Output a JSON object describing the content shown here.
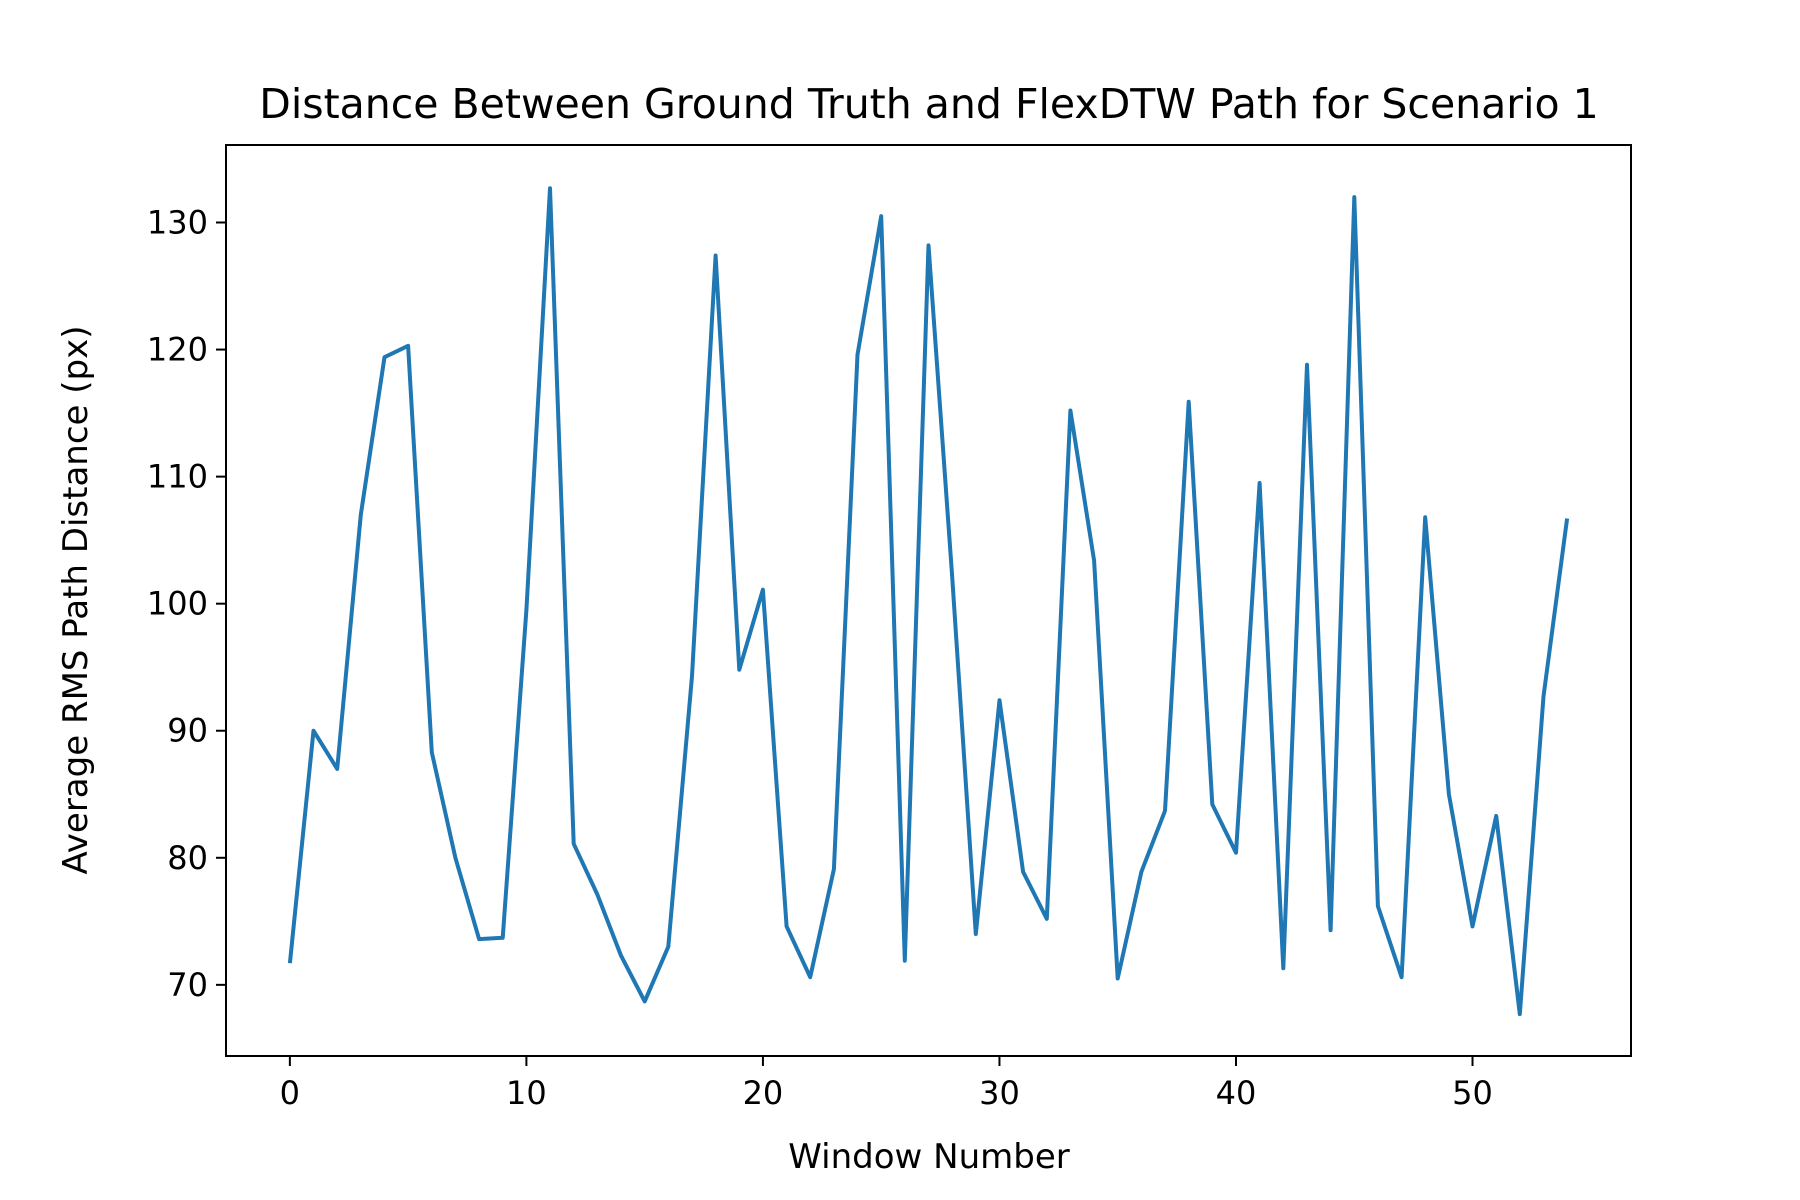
{
  "chart_data": {
    "type": "line",
    "title": "Distance Between Ground Truth and FlexDTW Path for Scenario 1",
    "xlabel": "Window Number",
    "ylabel": "Average RMS Path Distance (px)",
    "xlim": [
      -2.7,
      56.7
    ],
    "ylim": [
      64.4,
      136.1
    ],
    "xticks": [
      0,
      10,
      20,
      30,
      40,
      50
    ],
    "yticks": [
      70,
      80,
      90,
      100,
      110,
      120,
      130
    ],
    "grid": false,
    "legend": "none",
    "line_color": "#1f77b4",
    "series": [
      {
        "x": [
          0,
          1,
          2,
          3,
          4,
          5,
          6,
          7,
          8,
          9,
          10,
          11,
          12,
          13,
          14,
          15,
          16,
          17,
          18,
          19,
          20,
          21,
          22,
          23,
          24,
          25,
          26,
          27,
          28,
          29,
          30,
          31,
          32,
          33,
          34,
          35,
          36,
          37,
          38,
          39,
          40,
          41,
          42,
          43,
          44,
          45,
          46,
          47,
          48,
          49,
          50,
          51,
          52,
          53,
          54
        ],
        "values": [
          71.7,
          90.0,
          87.0,
          107.0,
          119.4,
          120.3,
          88.3,
          80.0,
          73.6,
          73.7,
          99.5,
          132.7,
          81.1,
          77.1,
          72.3,
          68.7,
          73.0,
          94.3,
          127.4,
          94.8,
          101.1,
          74.6,
          70.6,
          79.1,
          119.6,
          130.5,
          71.9,
          128.2,
          102.1,
          74.0,
          92.4,
          78.9,
          75.2,
          115.2,
          103.4,
          70.5,
          78.9,
          83.7,
          115.9,
          84.2,
          80.4,
          109.5,
          71.3,
          118.8,
          74.3,
          132.0,
          76.2,
          70.6,
          106.8,
          85.0,
          74.6,
          83.3,
          67.7,
          92.7,
          106.7
        ]
      }
    ]
  }
}
